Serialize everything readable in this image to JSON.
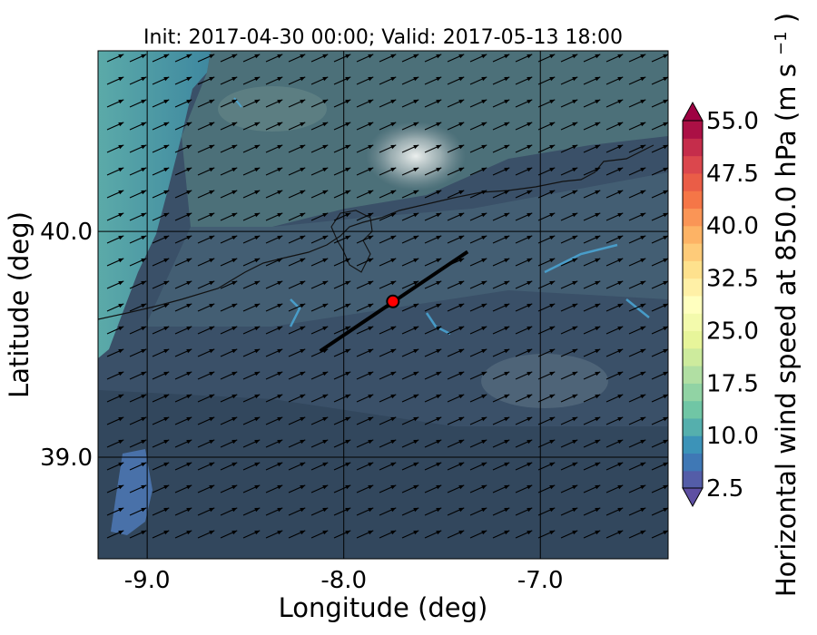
{
  "chart_data": {
    "type": "heatmap",
    "title": "Init: 2017-04-30 00:00; Valid: 2017-05-13 18:00",
    "xlabel": "Longitude (deg)",
    "ylabel": "Latitude (deg)",
    "xlim": [
      -9.25,
      -6.35
    ],
    "ylim": [
      38.55,
      40.8
    ],
    "x_ticks": [
      {
        "value": -9.0,
        "label": "-9.0"
      },
      {
        "value": -8.0,
        "label": "-8.0"
      },
      {
        "value": -7.0,
        "label": "-7.0"
      }
    ],
    "y_ticks": [
      {
        "value": 40.0,
        "label": "40.0"
      },
      {
        "value": 39.0,
        "label": "39.0"
      }
    ],
    "grid": true,
    "colorbar": {
      "label": "Horizontal wind speed at 850.0 hPa (m s",
      "label_exponent": "−1",
      "label_suffix": ")",
      "min": 2.5,
      "max": 55.0,
      "step": 2.5,
      "extend": "both",
      "colormap": "Spectral_r",
      "ticks": [
        {
          "value": 2.5,
          "label": "2.5"
        },
        {
          "value": 10.0,
          "label": "10.0"
        },
        {
          "value": 17.5,
          "label": "17.5"
        },
        {
          "value": 25.0,
          "label": "25.0"
        },
        {
          "value": 32.5,
          "label": "32.5"
        },
        {
          "value": 40.0,
          "label": "40.0"
        },
        {
          "value": 47.5,
          "label": "47.5"
        },
        {
          "value": 55.0,
          "label": "55.0"
        }
      ]
    },
    "wind_field": {
      "dominant_speed_range": [
        5,
        12
      ],
      "direction": "from southwest (vectors pointing northeast)"
    },
    "cross_section_line": {
      "start": {
        "lon": -8.12,
        "lat": 39.47
      },
      "end": {
        "lon": -7.37,
        "lat": 39.91
      },
      "color": "#000000"
    },
    "marker": {
      "lon": -7.75,
      "lat": 39.69,
      "color": "#ff0000"
    }
  }
}
